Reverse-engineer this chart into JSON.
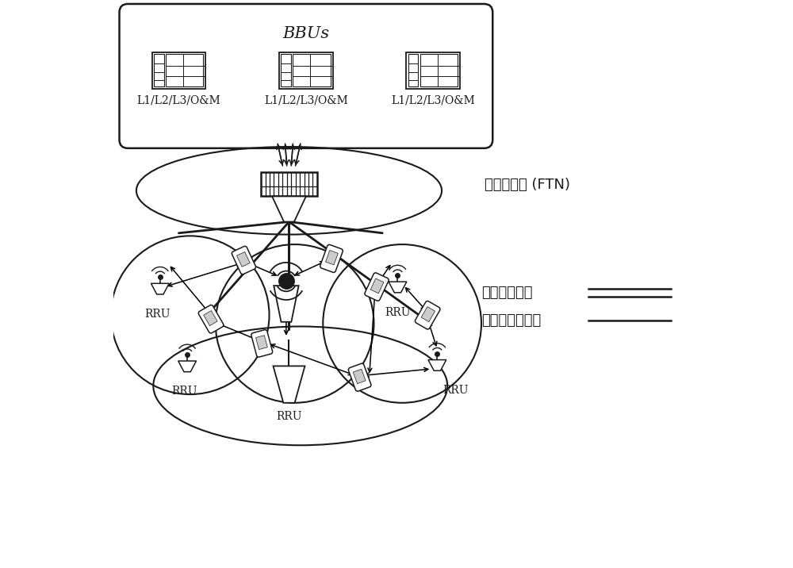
{
  "bg_color": "#ffffff",
  "line_color": "#1a1a1a",
  "bbu_box_label": "BBUs",
  "bbu_labels": [
    "L1/L2/L3/O&M",
    "L1/L2/L3/O&M",
    "L1/L2/L3/O&M"
  ],
  "ftn_label": "前传传送网 (FTN)",
  "ideal_label": "理想前传连接",
  "nonideal_label": "非理想前传连接",
  "font_size_main": 13,
  "font_size_label": 10,
  "font_size_bbu_title": 15,
  "font_size_bbu_label": 10
}
